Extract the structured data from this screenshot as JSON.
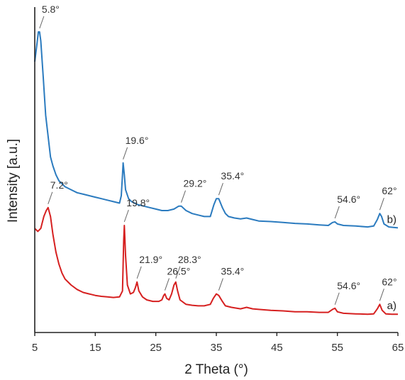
{
  "chart_data": {
    "type": "line",
    "title": "",
    "xlabel": "2 Theta (°)",
    "ylabel": "Intensity [a.u.]",
    "xlim": [
      5,
      65
    ],
    "ylim": [
      0,
      100
    ],
    "x_ticks": [
      "5",
      "15",
      "25",
      "35",
      "45",
      "55",
      "65"
    ],
    "grid": false,
    "series": [
      {
        "name": "a)",
        "color": "#d62020",
        "points": [
          [
            5.0,
            34
          ],
          [
            5.5,
            33
          ],
          [
            6.0,
            34
          ],
          [
            6.5,
            38
          ],
          [
            6.9,
            40
          ],
          [
            7.2,
            41
          ],
          [
            7.6,
            38
          ],
          [
            8.0,
            32
          ],
          [
            8.5,
            26
          ],
          [
            9.0,
            22
          ],
          [
            9.5,
            19
          ],
          [
            10.0,
            17
          ],
          [
            11.0,
            15
          ],
          [
            12.0,
            13.5
          ],
          [
            13.0,
            12.5
          ],
          [
            14.0,
            12
          ],
          [
            15.0,
            11.5
          ],
          [
            16.0,
            11.2
          ],
          [
            17.0,
            11
          ],
          [
            18.0,
            10.8
          ],
          [
            19.0,
            11
          ],
          [
            19.5,
            13
          ],
          [
            19.7,
            30
          ],
          [
            19.8,
            35
          ],
          [
            20.0,
            25
          ],
          [
            20.3,
            15
          ],
          [
            20.8,
            12
          ],
          [
            21.3,
            12.5
          ],
          [
            21.6,
            14
          ],
          [
            21.9,
            16
          ],
          [
            22.2,
            13
          ],
          [
            22.8,
            11
          ],
          [
            23.5,
            10
          ],
          [
            24.5,
            9.5
          ],
          [
            25.5,
            9.5
          ],
          [
            26.0,
            10
          ],
          [
            26.3,
            11.5
          ],
          [
            26.5,
            12
          ],
          [
            26.8,
            10.5
          ],
          [
            27.2,
            10
          ],
          [
            27.6,
            12
          ],
          [
            28.0,
            15
          ],
          [
            28.3,
            16
          ],
          [
            28.6,
            13
          ],
          [
            29.0,
            10
          ],
          [
            30.0,
            8.5
          ],
          [
            31.0,
            8.2
          ],
          [
            32.0,
            8
          ],
          [
            33.0,
            8
          ],
          [
            34.0,
            8.5
          ],
          [
            34.5,
            10.5
          ],
          [
            35.0,
            12
          ],
          [
            35.4,
            11.5
          ],
          [
            36.0,
            9.5
          ],
          [
            36.5,
            8
          ],
          [
            37.5,
            7.5
          ],
          [
            39.0,
            7
          ],
          [
            40.0,
            7.5
          ],
          [
            41.0,
            7
          ],
          [
            42.0,
            6.8
          ],
          [
            44.0,
            6.5
          ],
          [
            46.0,
            6.3
          ],
          [
            48.0,
            6
          ],
          [
            50.0,
            6
          ],
          [
            52.0,
            5.8
          ],
          [
            53.5,
            5.8
          ],
          [
            54.2,
            6.8
          ],
          [
            54.6,
            7.2
          ],
          [
            55.0,
            6
          ],
          [
            56.0,
            5.5
          ],
          [
            58.0,
            5.3
          ],
          [
            60.0,
            5.2
          ],
          [
            61.0,
            5.3
          ],
          [
            61.6,
            7
          ],
          [
            62.0,
            8.5
          ],
          [
            62.4,
            6.5
          ],
          [
            63.0,
            5.3
          ],
          [
            64.0,
            5.2
          ],
          [
            65.0,
            5.2
          ]
        ]
      },
      {
        "name": "b)",
        "color": "#2b7bbf",
        "points": [
          [
            5.0,
            90
          ],
          [
            5.3,
            95
          ],
          [
            5.6,
            100
          ],
          [
            5.8,
            100
          ],
          [
            6.0,
            97
          ],
          [
            6.4,
            85
          ],
          [
            6.8,
            72
          ],
          [
            7.2,
            65
          ],
          [
            7.6,
            58
          ],
          [
            8.0,
            55
          ],
          [
            8.5,
            52
          ],
          [
            9.0,
            50
          ],
          [
            10.0,
            48
          ],
          [
            11.0,
            47
          ],
          [
            12.0,
            46
          ],
          [
            13.0,
            45.5
          ],
          [
            14.0,
            45
          ],
          [
            15.0,
            44.5
          ],
          [
            16.0,
            44
          ],
          [
            17.0,
            43.5
          ],
          [
            18.0,
            43
          ],
          [
            19.0,
            42.5
          ],
          [
            19.3,
            45
          ],
          [
            19.5,
            52
          ],
          [
            19.6,
            56
          ],
          [
            19.8,
            52
          ],
          [
            20.0,
            47
          ],
          [
            20.5,
            44
          ],
          [
            21.0,
            43
          ],
          [
            22.0,
            42
          ],
          [
            23.0,
            41.5
          ],
          [
            24.0,
            41
          ],
          [
            25.0,
            40.5
          ],
          [
            26.0,
            40
          ],
          [
            27.0,
            40
          ],
          [
            28.0,
            40.5
          ],
          [
            28.8,
            41.5
          ],
          [
            29.2,
            41.5
          ],
          [
            30.0,
            40
          ],
          [
            31.0,
            39
          ],
          [
            32.0,
            38.5
          ],
          [
            33.0,
            38
          ],
          [
            34.0,
            38
          ],
          [
            34.6,
            42
          ],
          [
            35.0,
            44
          ],
          [
            35.4,
            44
          ],
          [
            36.0,
            41
          ],
          [
            36.5,
            39
          ],
          [
            37.0,
            38
          ],
          [
            38.0,
            37.5
          ],
          [
            39.0,
            37.2
          ],
          [
            40.0,
            37.5
          ],
          [
            41.0,
            37
          ],
          [
            42.0,
            36.5
          ],
          [
            44.0,
            36.3
          ],
          [
            46.0,
            36
          ],
          [
            48.0,
            35.7
          ],
          [
            50.0,
            35.5
          ],
          [
            52.0,
            35.2
          ],
          [
            53.5,
            35
          ],
          [
            54.2,
            36
          ],
          [
            54.6,
            36.2
          ],
          [
            55.0,
            35.5
          ],
          [
            56.0,
            35
          ],
          [
            58.0,
            34.8
          ],
          [
            60.0,
            34.5
          ],
          [
            61.0,
            34.8
          ],
          [
            61.6,
            37
          ],
          [
            62.0,
            39
          ],
          [
            62.3,
            38
          ],
          [
            62.7,
            35.5
          ],
          [
            63.5,
            34.5
          ],
          [
            65.0,
            34.2
          ]
        ]
      }
    ],
    "annotations": [
      {
        "text": "5.8°",
        "x": 5.8,
        "y": 100,
        "series": "b)"
      },
      {
        "text": "19.6°",
        "x": 19.6,
        "y": 56,
        "series": "b)"
      },
      {
        "text": "29.2°",
        "x": 29.2,
        "y": 41.5,
        "series": "b)"
      },
      {
        "text": "35.4°",
        "x": 35.4,
        "y": 44,
        "series": "b)"
      },
      {
        "text": "54.6°",
        "x": 54.6,
        "y": 36.2,
        "series": "b)"
      },
      {
        "text": "62°",
        "x": 62,
        "y": 39,
        "series": "b)"
      },
      {
        "text": "7.2°",
        "x": 7.2,
        "y": 41,
        "series": "a)"
      },
      {
        "text": "19.8°",
        "x": 19.8,
        "y": 35,
        "series": "a)"
      },
      {
        "text": "21.9°",
        "x": 21.9,
        "y": 16,
        "series": "a)"
      },
      {
        "text": "26.5°",
        "x": 26.5,
        "y": 12,
        "series": "a)"
      },
      {
        "text": "28.3°",
        "x": 28.3,
        "y": 16,
        "series": "a)"
      },
      {
        "text": "35.4°",
        "x": 35.4,
        "y": 12,
        "series": "a)"
      },
      {
        "text": "54.6°",
        "x": 54.6,
        "y": 7.2,
        "series": "a)"
      },
      {
        "text": "62°",
        "x": 62,
        "y": 8.5,
        "series": "a)"
      }
    ]
  }
}
